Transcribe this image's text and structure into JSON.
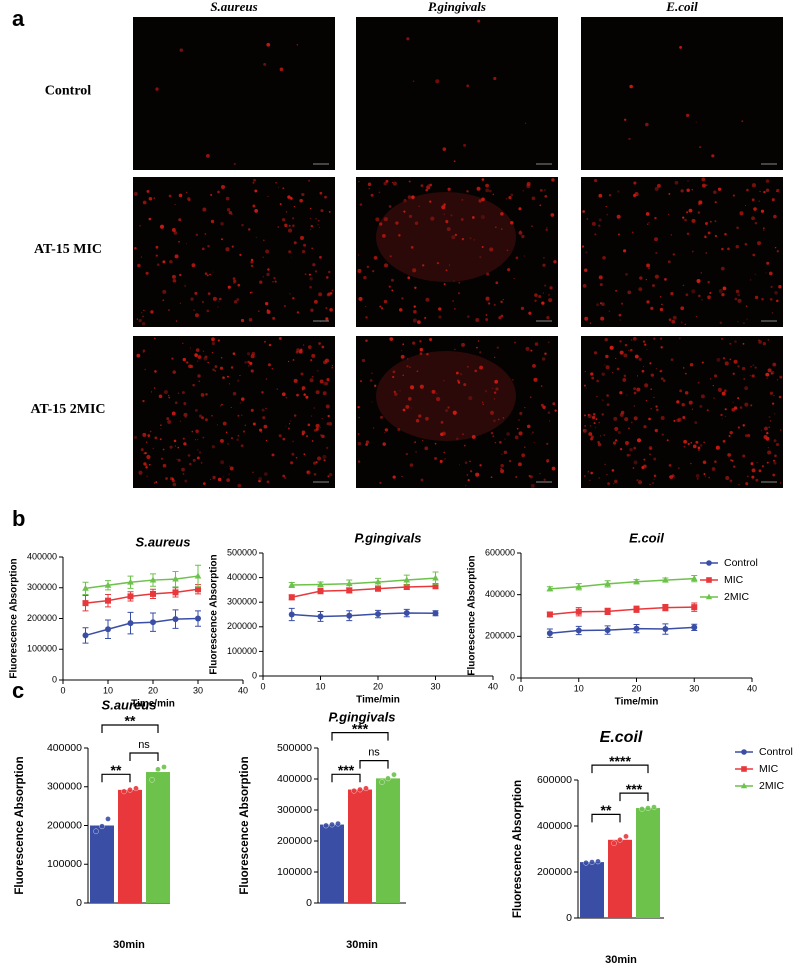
{
  "panels": [
    "a",
    "b",
    "c"
  ],
  "panel_a": {
    "column_titles": [
      "S.aureus",
      "P.gingivals",
      "E.coil"
    ],
    "row_labels": [
      "Control",
      "AT-15 MIC",
      "AT-15 2MIC"
    ]
  },
  "chart_data": [
    {
      "type": "line",
      "title": "S.aureus",
      "xlabel": "Time/min",
      "ylabel": "Fluorescence Absorption",
      "x": [
        5,
        10,
        15,
        20,
        25,
        30
      ],
      "xlim": [
        0,
        40
      ],
      "xticks": [
        0,
        10,
        20,
        30,
        40
      ],
      "ylim": [
        0,
        400000
      ],
      "yticks": [
        0,
        100000,
        200000,
        300000,
        400000
      ],
      "series": [
        {
          "name": "Control",
          "color": "#3a4ea6",
          "marker": "circle",
          "values": [
            145000,
            165000,
            185000,
            188000,
            198000,
            200000
          ],
          "errors": [
            25000,
            30000,
            35000,
            30000,
            30000,
            25000
          ]
        },
        {
          "name": "MIC",
          "color": "#e8383b",
          "marker": "square",
          "values": [
            250000,
            258000,
            272000,
            280000,
            285000,
            295000
          ],
          "errors": [
            25000,
            20000,
            15000,
            15000,
            15000,
            15000
          ]
        },
        {
          "name": "2MIC",
          "color": "#6cc24a",
          "marker": "triangle",
          "values": [
            298000,
            308000,
            318000,
            325000,
            328000,
            338000
          ],
          "errors": [
            20000,
            15000,
            20000,
            20000,
            25000,
            35000
          ]
        }
      ]
    },
    {
      "type": "line",
      "title": "P.gingivals",
      "xlabel": "Time/min",
      "ylabel": "Fluorescence Absorption",
      "x": [
        5,
        10,
        15,
        20,
        25,
        30
      ],
      "xlim": [
        0,
        40
      ],
      "xticks": [
        0,
        10,
        20,
        30,
        40
      ],
      "ylim": [
        0,
        500000
      ],
      "yticks": [
        0,
        100000,
        200000,
        300000,
        400000,
        500000
      ],
      "series": [
        {
          "name": "Control",
          "color": "#3a4ea6",
          "marker": "circle",
          "values": [
            250000,
            242000,
            245000,
            252000,
            256000,
            255000
          ],
          "errors": [
            25000,
            20000,
            20000,
            15000,
            15000,
            10000
          ]
        },
        {
          "name": "MIC",
          "color": "#e8383b",
          "marker": "square",
          "values": [
            320000,
            345000,
            348000,
            355000,
            362000,
            365000
          ],
          "errors": [
            10000,
            10000,
            10000,
            10000,
            10000,
            10000
          ]
        },
        {
          "name": "2MIC",
          "color": "#6cc24a",
          "marker": "triangle",
          "values": [
            370000,
            372000,
            375000,
            382000,
            390000,
            398000
          ],
          "errors": [
            10000,
            10000,
            15000,
            15000,
            20000,
            25000
          ]
        }
      ]
    },
    {
      "type": "line",
      "title": "E.coil",
      "xlabel": "Time/min",
      "ylabel": "Fluorescence Absorption",
      "x": [
        5,
        10,
        15,
        20,
        25,
        30
      ],
      "xlim": [
        0,
        40
      ],
      "xticks": [
        0,
        10,
        20,
        30,
        40
      ],
      "ylim": [
        0,
        600000
      ],
      "yticks": [
        0,
        200000,
        400000,
        600000
      ],
      "legend": "right",
      "series": [
        {
          "name": "Control",
          "color": "#3a4ea6",
          "marker": "circle",
          "values": [
            215000,
            228000,
            230000,
            237000,
            235000,
            243000
          ],
          "errors": [
            20000,
            20000,
            20000,
            20000,
            25000,
            15000
          ]
        },
        {
          "name": "MIC",
          "color": "#e8383b",
          "marker": "square",
          "values": [
            305000,
            318000,
            320000,
            330000,
            338000,
            340000
          ],
          "errors": [
            10000,
            20000,
            15000,
            15000,
            15000,
            20000
          ]
        },
        {
          "name": "2MIC",
          "color": "#6cc24a",
          "marker": "triangle",
          "values": [
            428000,
            438000,
            452000,
            462000,
            470000,
            477000
          ],
          "errors": [
            10000,
            15000,
            15000,
            10000,
            10000,
            15000
          ]
        }
      ]
    },
    {
      "type": "bar",
      "title": "S.aureus",
      "xlabel": "30min",
      "ylabel": "Fluorescence Absorption",
      "ylim": [
        0,
        400000
      ],
      "yticks": [
        0,
        100000,
        200000,
        300000,
        400000
      ],
      "series": [
        {
          "name": "Control",
          "color": "#3a4ea6",
          "marker": "circle",
          "values": [
            200000
          ],
          "points": [
            185000,
            198000,
            217000
          ]
        },
        {
          "name": "MIC",
          "color": "#e8383b",
          "marker": "square",
          "values": [
            292000
          ],
          "points": [
            288000,
            292000,
            296000
          ]
        },
        {
          "name": "2MIC",
          "color": "#6cc24a",
          "marker": "triangle",
          "values": [
            338000
          ],
          "points": [
            318000,
            345000,
            351000
          ]
        }
      ],
      "annotations": [
        {
          "text": "**",
          "pair": [
            0,
            2
          ]
        },
        {
          "text": "**",
          "pair": [
            0,
            1
          ]
        },
        {
          "text": "ns",
          "pair": [
            1,
            2
          ]
        }
      ]
    },
    {
      "type": "bar",
      "title": "P.gingivals",
      "xlabel": "30min",
      "ylabel": "Fluorescence Absorption",
      "ylim": [
        0,
        500000
      ],
      "yticks": [
        0,
        100000,
        200000,
        300000,
        400000,
        500000
      ],
      "series": [
        {
          "name": "Control",
          "color": "#3a4ea6",
          "marker": "circle",
          "values": [
            253000
          ],
          "points": [
            250000,
            253000,
            256000
          ]
        },
        {
          "name": "MIC",
          "color": "#e8383b",
          "marker": "square",
          "values": [
            366000
          ],
          "points": [
            362000,
            366000,
            370000
          ]
        },
        {
          "name": "2MIC",
          "color": "#6cc24a",
          "marker": "triangle",
          "values": [
            402000
          ],
          "points": [
            390000,
            402000,
            414000
          ]
        }
      ],
      "annotations": [
        {
          "text": "***",
          "pair": [
            0,
            2
          ]
        },
        {
          "text": "***",
          "pair": [
            0,
            1
          ]
        },
        {
          "text": "ns",
          "pair": [
            1,
            2
          ]
        }
      ]
    },
    {
      "type": "bar",
      "title": "E.coil",
      "xlabel": "30min",
      "ylabel": "Fluorescence Absorption",
      "ylim": [
        0,
        600000
      ],
      "yticks": [
        0,
        200000,
        400000,
        600000
      ],
      "legend": "right",
      "series": [
        {
          "name": "Control",
          "color": "#3a4ea6",
          "marker": "circle",
          "values": [
            243000
          ],
          "points": [
            240000,
            243000,
            246000
          ]
        },
        {
          "name": "MIC",
          "color": "#e8383b",
          "marker": "square",
          "values": [
            340000
          ],
          "points": [
            325000,
            340000,
            355000
          ]
        },
        {
          "name": "2MIC",
          "color": "#6cc24a",
          "marker": "triangle",
          "values": [
            478000
          ],
          "points": [
            474000,
            478000,
            482000
          ]
        }
      ],
      "annotations": [
        {
          "text": "****",
          "pair": [
            0,
            2
          ]
        },
        {
          "text": "**",
          "pair": [
            0,
            1
          ]
        },
        {
          "text": "***",
          "pair": [
            1,
            2
          ]
        }
      ]
    }
  ]
}
